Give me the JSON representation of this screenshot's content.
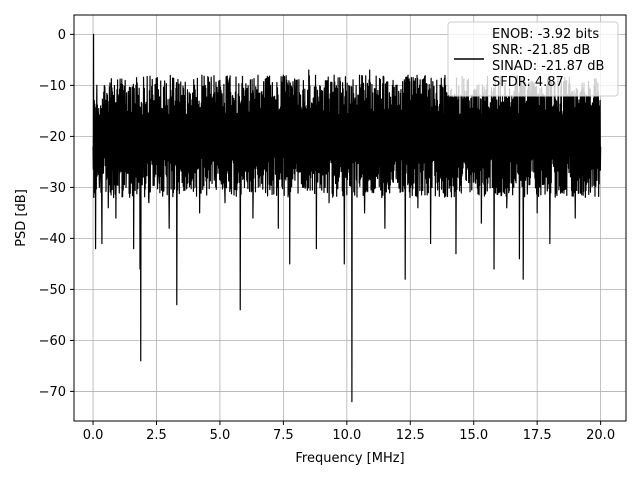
{
  "chart_data": {
    "type": "line",
    "title": "",
    "xlabel": "Frequency [MHz]",
    "ylabel": "PSD [dB]",
    "xlim": [
      -0.75,
      21.0
    ],
    "ylim": [
      -75.8,
      3.8
    ],
    "xticks": [
      0.0,
      2.5,
      5.0,
      7.5,
      10.0,
      12.5,
      15.0,
      17.5,
      20.0
    ],
    "xtick_labels": [
      "0.0",
      "2.5",
      "5.0",
      "7.5",
      "10.0",
      "12.5",
      "15.0",
      "17.5",
      "20.0"
    ],
    "yticks": [
      0,
      -10,
      -20,
      -30,
      -40,
      -50,
      -60,
      -70
    ],
    "ytick_labels": [
      "0",
      "−10",
      "−20",
      "−30",
      "−40",
      "−50",
      "−60",
      "−70"
    ],
    "grid": true,
    "legend_position": "top-right",
    "line_color": "#000000",
    "series": [
      {
        "name": "ENOB: -3.92 bits\nSNR: -21.85 dB\nSINAD: -21.87 dB\nSFDR: 4.87",
        "legend_lines": [
          "ENOB: -3.92 bits",
          "SNR: -21.85 dB",
          "SINAD: -21.87 dB",
          "SFDR: 4.87"
        ],
        "x": [
          0.0,
          0.02,
          0.05,
          0.1,
          0.12,
          0.15,
          0.2,
          0.25,
          0.3,
          0.35,
          0.4,
          0.5,
          0.6,
          0.7,
          0.8,
          0.9,
          1.0,
          1.2,
          1.3,
          1.5,
          1.6,
          1.75,
          1.85,
          1.88,
          1.95,
          2.0,
          2.2,
          2.4,
          2.6,
          2.8,
          3.0,
          3.2,
          3.3,
          3.5,
          3.7,
          4.0,
          4.2,
          4.5,
          4.8,
          5.0,
          5.2,
          5.5,
          5.7,
          5.8,
          6.0,
          6.3,
          6.5,
          6.8,
          7.0,
          7.3,
          7.5,
          7.75,
          7.9,
          8.0,
          8.3,
          8.5,
          8.8,
          9.0,
          9.3,
          9.5,
          9.7,
          9.9,
          10.1,
          10.2,
          10.3,
          10.5,
          10.7,
          10.9,
          11.0,
          11.3,
          11.5,
          11.8,
          12.0,
          12.3,
          12.5,
          12.8,
          13.0,
          13.3,
          13.5,
          13.8,
          14.0,
          14.3,
          14.5,
          14.8,
          15.0,
          15.3,
          15.5,
          15.8,
          16.0,
          16.3,
          16.5,
          16.8,
          16.95,
          17.2,
          17.5,
          17.8,
          18.0,
          18.3,
          18.5,
          18.8,
          19.0,
          19.3,
          19.5,
          19.8,
          20.0
        ],
        "values": [
          -22.0,
          0.0,
          -13.0,
          -42.0,
          -28.0,
          -10.0,
          -25.0,
          -30.0,
          -14.0,
          -41.0,
          -20.0,
          -13.0,
          -34.0,
          -18.0,
          -12.0,
          -36.0,
          -22.0,
          -11.0,
          -30.0,
          -17.0,
          -42.0,
          -14.0,
          -46.0,
          -64.0,
          -20.0,
          -12.0,
          -33.0,
          -13.0,
          -28.0,
          -11.0,
          -38.0,
          -14.0,
          -53.0,
          -12.0,
          -29.0,
          -10.0,
          -35.0,
          -13.0,
          -27.0,
          -9.0,
          -33.0,
          -12.0,
          -24.0,
          -54.0,
          -11.0,
          -36.0,
          -8.0,
          -31.0,
          -10.0,
          -38.0,
          -8.0,
          -45.0,
          -12.0,
          -9.0,
          -30.0,
          -7.0,
          -42.0,
          -11.0,
          -33.0,
          -8.0,
          -28.0,
          -45.0,
          -11.0,
          -72.0,
          -14.0,
          -8.0,
          -35.0,
          -7.0,
          -31.0,
          -12.0,
          -38.0,
          -10.0,
          -29.0,
          -48.0,
          -13.0,
          -34.0,
          -9.0,
          -41.0,
          -14.0,
          -31.0,
          -10.0,
          -43.0,
          -12.0,
          -29.0,
          -11.0,
          -37.0,
          -12.0,
          -46.0,
          -14.0,
          -34.0,
          -12.0,
          -44.0,
          -48.0,
          -14.0,
          -35.0,
          -12.0,
          -41.0,
          -15.0,
          -30.0,
          -13.0,
          -36.0,
          -14.0,
          -29.0,
          -13.0,
          -22.0
        ]
      }
    ]
  }
}
